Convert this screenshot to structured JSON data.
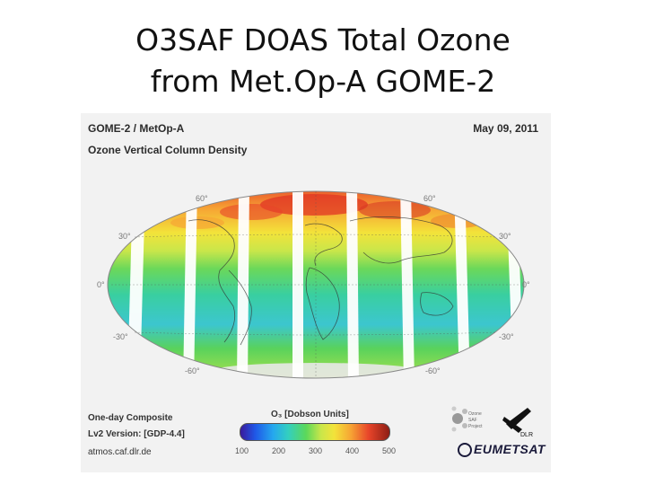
{
  "slide": {
    "title_line1": "O3SAF DOAS Total Ozone",
    "title_line2": "from Met.Op-A GOME-2"
  },
  "panel": {
    "instrument": "GOME-2 / MetOp-A",
    "product": "Ozone Vertical Column Density",
    "date": "May 09, 2011",
    "lat_labels": {
      "n60": "60°",
      "n30": "30°",
      "eq": "0°",
      "s30": "-30°",
      "s60": "-60°"
    },
    "composite": "One-day Composite",
    "version": "Lv2 Version: [GDP-4.4]",
    "url": "atmos.caf.dlr.de",
    "colorbar": {
      "label": "O₃ [Dobson Units]",
      "ticks": [
        "100",
        "200",
        "300",
        "400",
        "500"
      ],
      "range": [
        100,
        500
      ]
    },
    "logos": {
      "o3saf": "Ozone SAF Project",
      "dlr": "DLR",
      "eumetsat": "EUMETSAT"
    }
  },
  "colors": {
    "low": "#1f58e8",
    "mid": "#5bd85a",
    "high": "#e8452a",
    "gap": "#ffffff"
  }
}
